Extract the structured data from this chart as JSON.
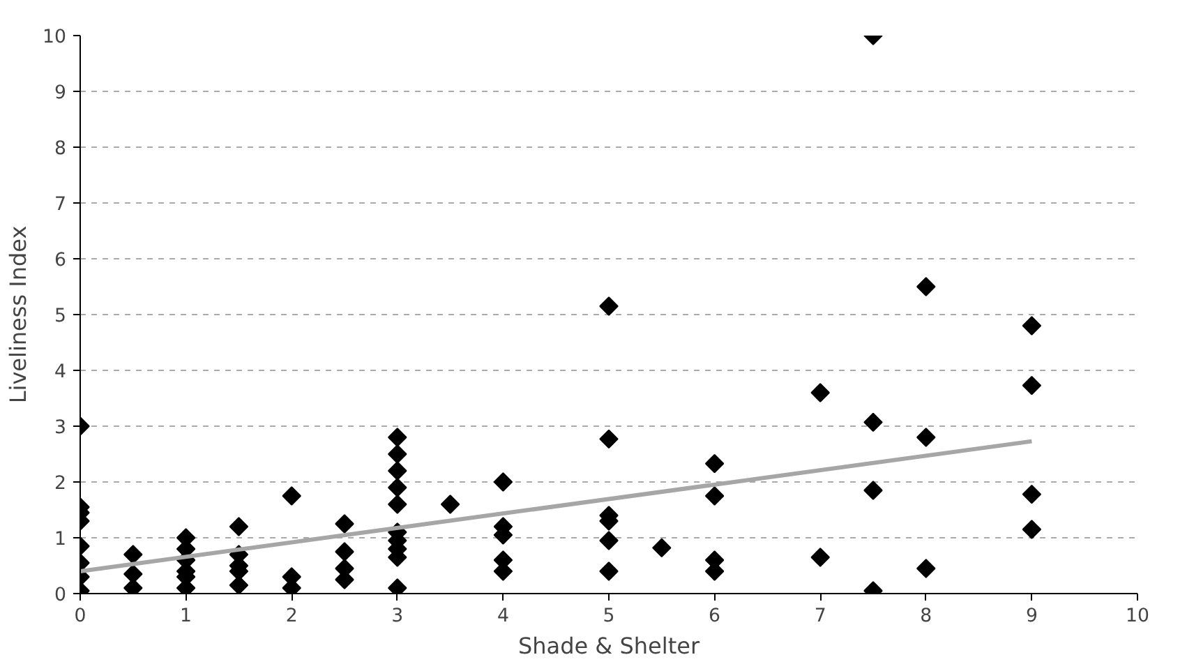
{
  "chart_data": {
    "type": "scatter",
    "xlabel": "Shade & Shelter",
    "ylabel": "Liveliness Index",
    "xlim": [
      0,
      10
    ],
    "ylim": [
      0,
      10
    ],
    "xticks": [
      0,
      1,
      2,
      3,
      4,
      5,
      6,
      7,
      8,
      9,
      10
    ],
    "yticks": [
      0,
      1,
      2,
      3,
      4,
      5,
      6,
      7,
      8,
      9,
      10
    ],
    "grid": "y",
    "marker": "diamond",
    "series": [
      {
        "color": "#000000",
        "x": [
          0,
          0,
          0,
          0,
          0,
          0,
          0,
          0,
          0.5,
          0.5,
          0.5,
          1,
          1,
          1,
          1,
          1,
          1,
          1.5,
          1.5,
          1.5,
          1.5,
          1.5,
          2,
          2,
          2,
          2.5,
          2.5,
          2.5,
          2.5,
          3,
          3,
          3,
          3,
          3,
          3,
          3,
          3,
          3,
          3,
          3.5,
          4,
          4,
          4,
          4,
          4,
          5,
          5,
          5,
          5,
          5,
          5,
          5.5,
          6,
          6,
          6,
          6,
          7,
          7,
          7.5,
          7.5,
          7.5,
          7.5,
          8,
          8,
          8,
          9,
          9,
          9,
          9
        ],
        "values": [
          3.0,
          1.55,
          1.45,
          1.3,
          0.85,
          0.55,
          0.3,
          0.05,
          0.7,
          0.35,
          0.1,
          1.0,
          0.8,
          0.6,
          0.4,
          0.3,
          0.1,
          1.2,
          0.7,
          0.5,
          0.4,
          0.15,
          1.75,
          0.3,
          0.1,
          1.25,
          0.75,
          0.45,
          0.25,
          2.8,
          2.5,
          2.2,
          1.9,
          1.6,
          1.1,
          0.95,
          0.8,
          0.65,
          0.1,
          1.6,
          2.0,
          1.2,
          1.05,
          0.6,
          0.4,
          5.15,
          2.77,
          1.4,
          1.3,
          0.95,
          0.4,
          0.82,
          2.33,
          1.75,
          0.6,
          0.4,
          3.6,
          0.65,
          10,
          3.07,
          1.85,
          0.05,
          5.5,
          2.8,
          0.45,
          4.8,
          3.73,
          1.78,
          1.15
        ]
      },
      {
        "type": "line",
        "color": "#a6a6a6",
        "marker": "none",
        "x": [
          0,
          9
        ],
        "values": [
          0.4,
          2.73
        ]
      }
    ]
  }
}
